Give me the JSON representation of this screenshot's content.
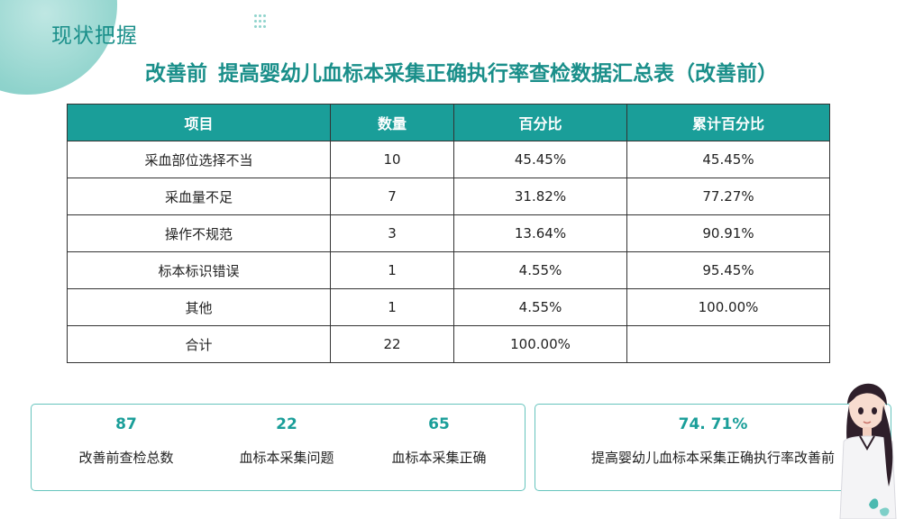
{
  "section_title": "现状把握",
  "main_title": {
    "prefix": "改善前",
    "text": "提高婴幼儿血标本采集正确执行率查检数据汇总表（改善前）"
  },
  "table": {
    "headers": [
      "项目",
      "数量",
      "百分比",
      "累计百分比"
    ],
    "rows": [
      [
        "采血部位选择不当",
        "10",
        "45.45%",
        "45.45%"
      ],
      [
        "采血量不足",
        "7",
        "31.82%",
        "77.27%"
      ],
      [
        "操作不规范",
        "3",
        "13.64%",
        "90.91%"
      ],
      [
        "标本标识错误",
        "1",
        "4.55%",
        "95.45%"
      ],
      [
        "其他",
        "1",
        "4.55%",
        "100.00%"
      ],
      [
        "合计",
        "22",
        "100.00%",
        ""
      ]
    ]
  },
  "stats": [
    {
      "value": "87",
      "label": "改善前查检总数"
    },
    {
      "value": "22",
      "label": "血标本采集问题"
    },
    {
      "value": "65",
      "label": "血标本采集正确"
    },
    {
      "value": "74. 71%",
      "label": "提高婴幼儿血标本采集正确执行率改善前"
    }
  ],
  "colors": {
    "accent": "#1a9e99",
    "title": "#1a8f8a",
    "border": "#66c4bd"
  }
}
